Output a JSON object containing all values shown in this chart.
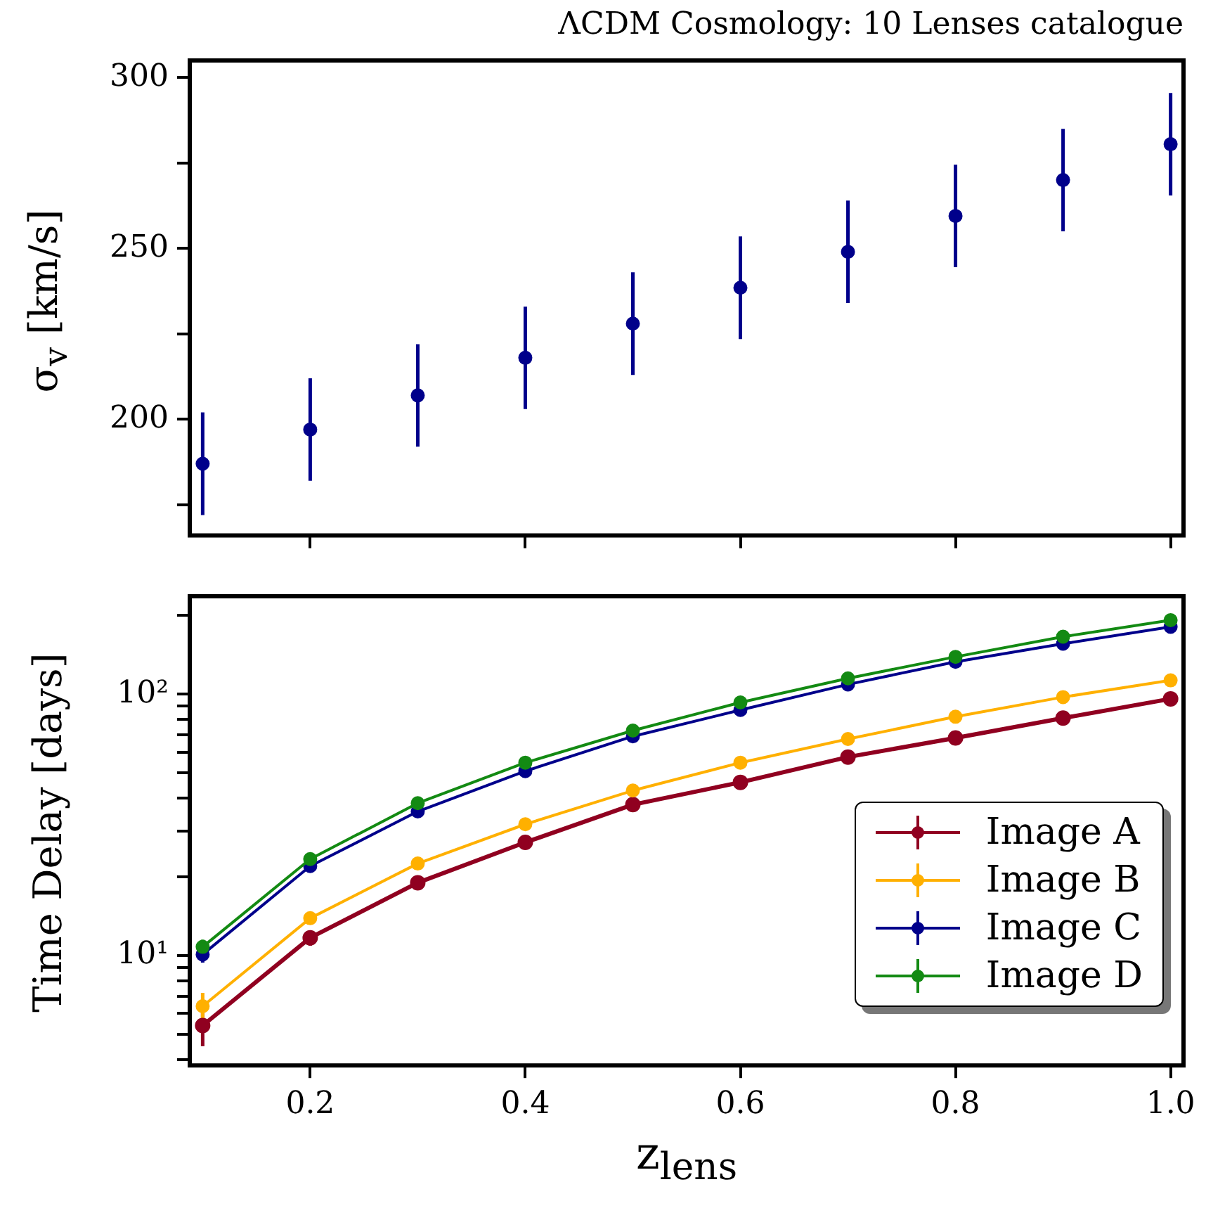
{
  "chart_data": [
    {
      "type": "scatter",
      "title": "ΛCDM Cosmology: 10 Lenses catalogue",
      "ylabel": "σ$_{v}$ [km/s]",
      "x": [
        0.1,
        0.2,
        0.3,
        0.4,
        0.5,
        0.6,
        0.7,
        0.8,
        0.9,
        1.0
      ],
      "series": [
        {
          "color": "#00008b",
          "values": [
            187,
            197,
            207,
            218,
            228,
            238.5,
            249,
            259.5,
            270,
            280.5
          ],
          "errors": [
            15,
            15,
            15,
            15,
            15,
            15,
            15,
            15,
            15,
            15
          ]
        }
      ],
      "xlim": [
        0.088,
        1.012
      ],
      "xticks": [
        {
          "value": 0.2,
          "label": null
        },
        {
          "value": 0.4,
          "label": null
        },
        {
          "value": 0.6,
          "label": null
        },
        {
          "value": 0.8,
          "label": null
        },
        {
          "value": 1.0,
          "label": null
        }
      ],
      "ylim": [
        166,
        305
      ],
      "yticks": [
        {
          "value": 175,
          "label": null
        },
        200,
        {
          "value": 225,
          "label": null
        },
        250,
        {
          "value": 275,
          "label": null
        },
        300
      ],
      "tick_labels": "y",
      "marker": "circle"
    },
    {
      "type": "line",
      "xlabel": "z$_{lens}$",
      "ylabel": "Time Delay [days]",
      "x": [
        0.1,
        0.2,
        0.3,
        0.4,
        0.5,
        0.6,
        0.7,
        0.8,
        0.9,
        1.0
      ],
      "log": "y",
      "legend": "bottom right",
      "marker": "circle",
      "series": [
        {
          "name": "Image A",
          "color": "#900020",
          "values": [
            5.4,
            11.7,
            19,
            27.1,
            37.8,
            46,
            57.5,
            68,
            81,
            96
          ],
          "errors": [
            0.9,
            0.8,
            null,
            null,
            null,
            null,
            null,
            null,
            null,
            null
          ]
        },
        {
          "name": "Image B",
          "color": "#ffb000",
          "values": [
            6.4,
            13.9,
            22.5,
            31.8,
            42.8,
            54.7,
            67.4,
            82,
            97.5,
            113
          ],
          "errors": [
            0.8,
            0.6,
            null,
            null,
            null,
            null,
            null,
            null,
            null,
            null
          ]
        },
        {
          "name": "Image C",
          "color": "#00008b",
          "values": [
            10.1,
            22,
            35.6,
            50.8,
            69,
            87,
            109,
            133,
            156,
            181
          ],
          "errors": [
            0.7,
            null,
            null,
            null,
            null,
            null,
            null,
            null,
            null,
            null
          ]
        },
        {
          "name": "Image D",
          "color": "#138a13",
          "values": [
            10.8,
            23.4,
            38.3,
            54.7,
            72.6,
            93,
            115,
            139,
            166,
            192
          ],
          "errors": [
            0.7,
            null,
            null,
            null,
            null,
            null,
            null,
            null,
            null,
            null
          ]
        }
      ],
      "xlim": [
        0.088,
        1.012
      ],
      "xticks": [
        {
          "value": 0.2,
          "label": "0.2"
        },
        {
          "value": 0.4,
          "label": "0.4"
        },
        {
          "value": 0.6,
          "label": "0.6"
        },
        {
          "value": 0.8,
          "label": "0.8"
        },
        {
          "value": 1.0,
          "label": "1.0"
        }
      ],
      "ylim": [
        3.8,
        237
      ],
      "yticks": [
        {
          "value": 4,
          "label": null
        },
        {
          "value": 5,
          "label": null
        },
        {
          "value": 6,
          "label": null
        },
        {
          "value": 7,
          "label": null
        },
        {
          "value": 8,
          "label": null
        },
        {
          "value": 9,
          "label": null
        },
        {
          "value": 10,
          "label": "10¹"
        },
        {
          "value": 20,
          "label": null
        },
        {
          "value": 30,
          "label": null
        },
        {
          "value": 40,
          "label": null
        },
        {
          "value": 50,
          "label": null
        },
        {
          "value": 60,
          "label": null
        },
        {
          "value": 70,
          "label": null
        },
        {
          "value": 80,
          "label": null
        },
        {
          "value": 90,
          "label": null
        },
        {
          "value": 100,
          "label": "10²"
        },
        {
          "value": 200,
          "label": null
        }
      ]
    }
  ]
}
